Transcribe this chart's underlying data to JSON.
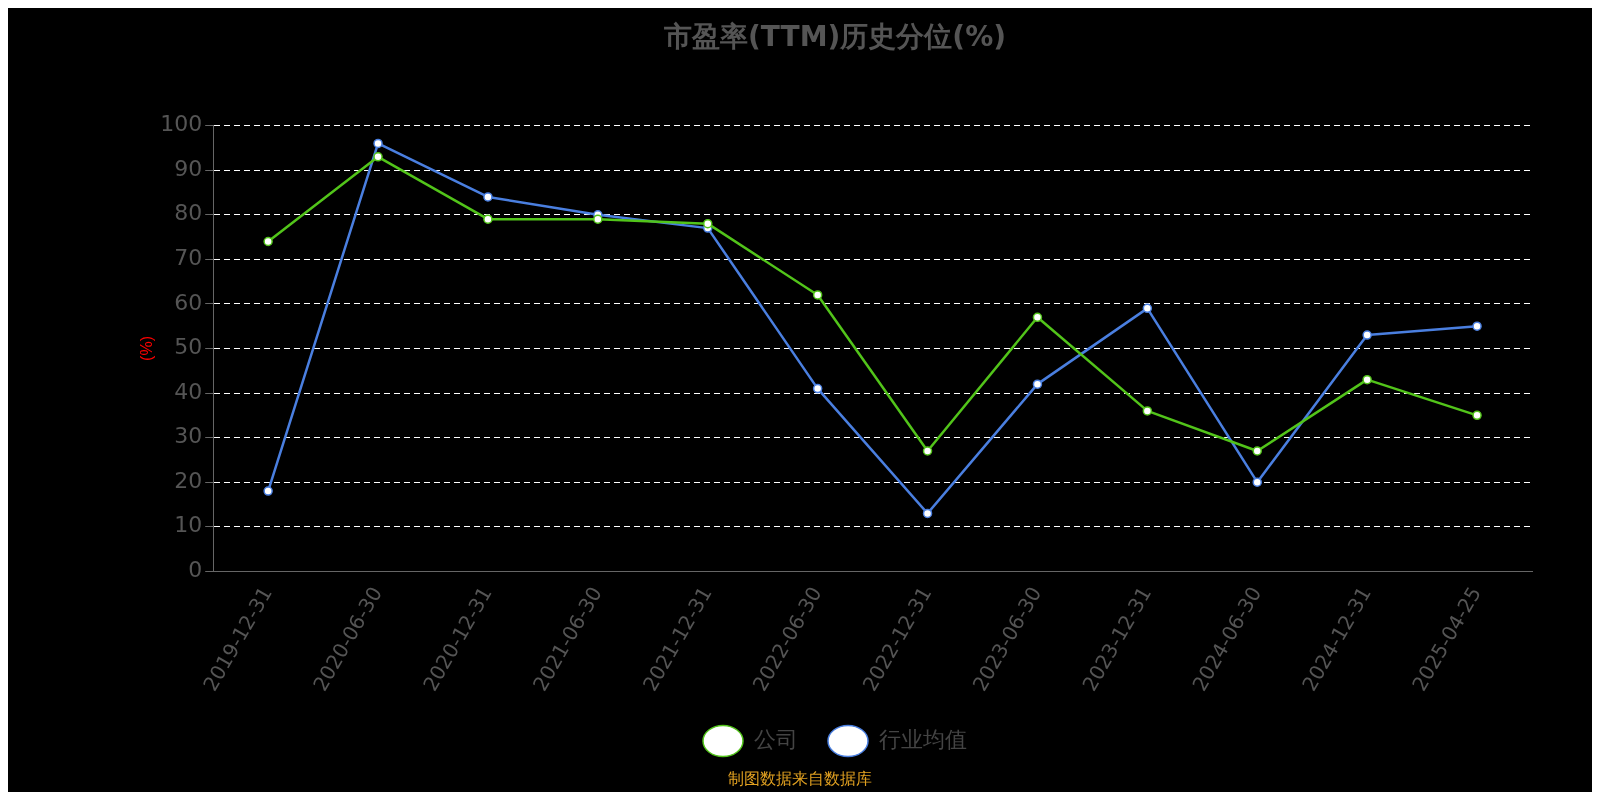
{
  "chart_data": {
    "type": "line",
    "title": "市盈率(TTM)历史分位(%)",
    "ylabel": "(%)",
    "categories": [
      "2019-12-31",
      "2020-06-30",
      "2020-12-31",
      "2021-06-30",
      "2021-12-31",
      "2022-06-30",
      "2022-12-31",
      "2023-06-30",
      "2023-12-31",
      "2024-06-30",
      "2024-12-31",
      "2025-04-25"
    ],
    "series": [
      {
        "name": "公司",
        "color": "#52c41a",
        "values": [
          74,
          93,
          79,
          79,
          78,
          62,
          27,
          57,
          36,
          27,
          43,
          35
        ]
      },
      {
        "name": "行业均值",
        "color": "#4a7fe0",
        "values": [
          18,
          96,
          84,
          80,
          77,
          41,
          13,
          42,
          59,
          20,
          53,
          55
        ]
      }
    ],
    "ylim": [
      0,
      100
    ],
    "yticks": [
      0,
      10,
      20,
      30,
      40,
      50,
      60,
      70,
      80,
      90,
      100
    ],
    "grid": "y",
    "legend": "bottom",
    "marker": "circle",
    "line_style": "solid",
    "annotations": [
      "制图数据来自数据库"
    ]
  }
}
